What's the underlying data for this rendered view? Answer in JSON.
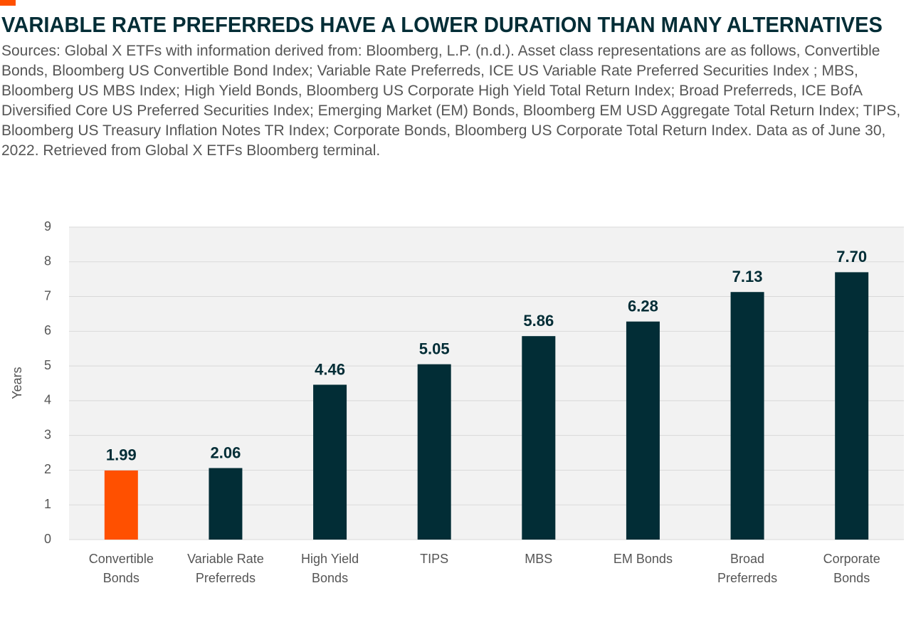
{
  "chart_data": {
    "type": "bar",
    "title": "VARIABLE RATE PREFERREDS HAVE A LOWER DURATION THAN MANY ALTERNATIVES",
    "subtitle": "Sources: Global X ETFs with information derived from: Bloomberg, L.P. (n.d.). Asset class representations are as follows, Convertible Bonds, Bloomberg US Convertible Bond Index; Variable Rate Preferreds, ICE US Variable Rate Preferred Securities Index ; MBS, Bloomberg US MBS Index; High Yield Bonds, Bloomberg US Corporate High Yield Total Return Index; Broad Preferreds, ICE BofA Diversified Core US Preferred Securities Index; Emerging Market (EM) Bonds, Bloomberg EM USD Aggregate Total Return Index; TIPS, Bloomberg US Treasury Inflation Notes TR Index; Corporate Bonds, Bloomberg US Corporate Total Return Index. Data as of June 30, 2022. Retrieved from Global X ETFs Bloomberg terminal.",
    "y_label": "Years",
    "categories": [
      "Convertible Bonds",
      "Variable Rate Preferreds",
      "High Yield Bonds",
      "TIPS",
      "MBS",
      "EM Bonds",
      "Broad Preferreds",
      "Corporate Bonds"
    ],
    "values": [
      1.99,
      2.06,
      4.46,
      5.05,
      5.86,
      6.28,
      7.13,
      7.7
    ],
    "value_labels": [
      "1.99",
      "2.06",
      "4.46",
      "5.05",
      "5.86",
      "6.28",
      "7.13",
      "7.70"
    ],
    "colors": [
      "#ff5000",
      "#022d36",
      "#022d36",
      "#022d36",
      "#022d36",
      "#022d36",
      "#022d36",
      "#022d36"
    ],
    "ylim": [
      0,
      9
    ],
    "yticks": [
      0,
      1,
      2,
      3,
      4,
      5,
      6,
      7,
      8,
      9
    ],
    "grid": true
  }
}
